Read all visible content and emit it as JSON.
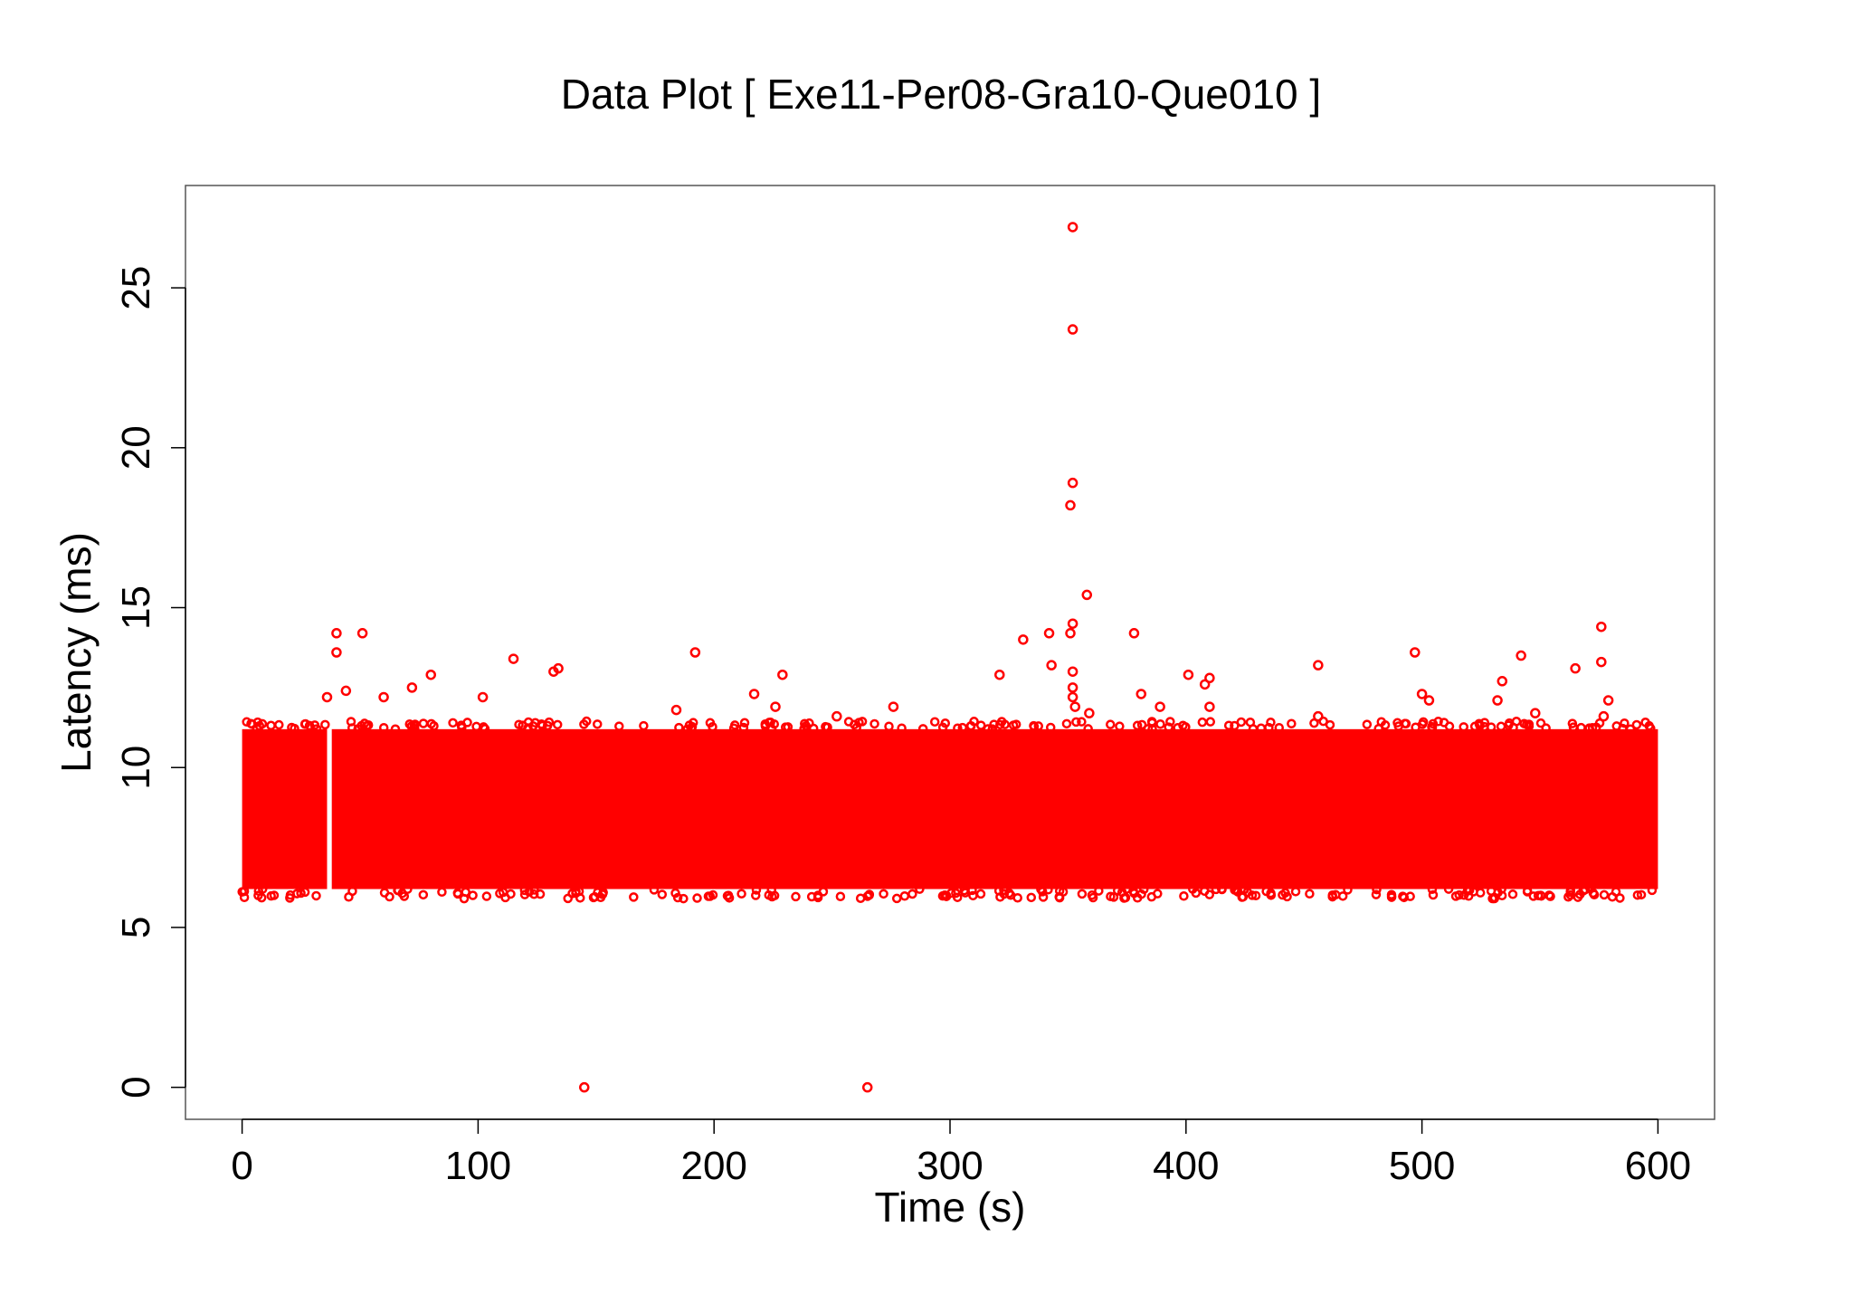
{
  "chart_data": {
    "type": "scatter",
    "title": "Data Plot [ Exe11-Per08-Gra10-Que010 ]",
    "xlabel": "Time (s)",
    "ylabel": "Latency (ms)",
    "xlim": [
      -24,
      624
    ],
    "ylim": [
      -1,
      28.2
    ],
    "xticks": [
      0,
      100,
      200,
      300,
      400,
      500,
      600
    ],
    "yticks": [
      0,
      5,
      10,
      15,
      20,
      25
    ],
    "grid": false,
    "legend": "none",
    "marker_color": "#ff0000",
    "band": {
      "x_range": [
        0,
        600
      ],
      "y_typical_range": [
        6.2,
        11.2
      ],
      "gap_x_range": [
        36,
        38
      ]
    },
    "series": [
      {
        "points": [
          [
            145,
            0.0
          ],
          [
            265,
            0.0
          ],
          [
            36,
            12.2
          ],
          [
            40,
            14.2
          ],
          [
            40,
            13.6
          ],
          [
            44,
            12.4
          ],
          [
            51,
            14.2
          ],
          [
            60,
            12.2
          ],
          [
            72,
            12.5
          ],
          [
            80,
            12.9
          ],
          [
            102,
            12.2
          ],
          [
            115,
            13.4
          ],
          [
            132,
            13.0
          ],
          [
            134,
            13.1
          ],
          [
            184,
            11.8
          ],
          [
            192,
            13.6
          ],
          [
            217,
            12.3
          ],
          [
            226,
            11.9
          ],
          [
            229,
            12.9
          ],
          [
            252,
            11.6
          ],
          [
            276,
            11.9
          ],
          [
            321,
            12.9
          ],
          [
            331,
            14.0
          ],
          [
            342,
            14.2
          ],
          [
            343,
            13.2
          ],
          [
            352,
            26.9
          ],
          [
            352,
            23.7
          ],
          [
            352,
            18.9
          ],
          [
            351,
            18.2
          ],
          [
            352,
            14.5
          ],
          [
            351,
            14.2
          ],
          [
            352,
            13.0
          ],
          [
            352,
            12.5
          ],
          [
            352,
            12.2
          ],
          [
            353,
            11.9
          ],
          [
            358,
            15.4
          ],
          [
            359,
            11.7
          ],
          [
            378,
            14.2
          ],
          [
            381,
            12.3
          ],
          [
            389,
            11.9
          ],
          [
            401,
            12.9
          ],
          [
            408,
            12.6
          ],
          [
            410,
            12.8
          ],
          [
            410,
            11.9
          ],
          [
            456,
            13.2
          ],
          [
            456,
            11.6
          ],
          [
            497,
            13.6
          ],
          [
            500,
            12.3
          ],
          [
            503,
            12.1
          ],
          [
            532,
            12.1
          ],
          [
            534,
            12.7
          ],
          [
            542,
            13.5
          ],
          [
            548,
            11.7
          ],
          [
            565,
            13.1
          ],
          [
            576,
            14.4
          ],
          [
            576,
            13.3
          ],
          [
            579,
            12.1
          ],
          [
            577,
            11.6
          ]
        ]
      }
    ]
  }
}
